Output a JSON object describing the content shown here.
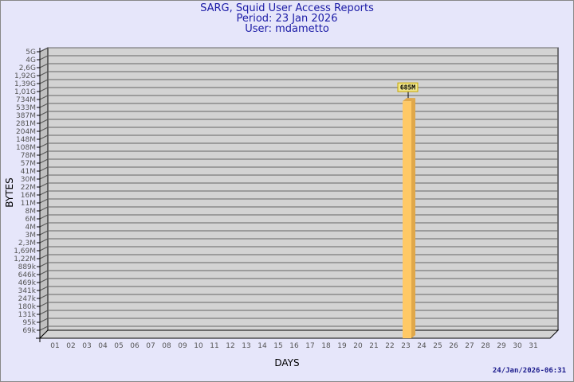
{
  "header": {
    "title": "SARG, Squid User Access Reports",
    "period": "Period: 23 Jan 2026",
    "user": "User: mdametto"
  },
  "footer": {
    "timestamp": "24/Jan/2026-06:31"
  },
  "chart_data": {
    "type": "bar",
    "title": "SARG, Squid User Access Reports",
    "xlabel": "DAYS",
    "ylabel": "BYTES",
    "yscale": "log",
    "grid": true,
    "ytick_labels": [
      "5G",
      "4G",
      "2,6G",
      "1,92G",
      "1,39G",
      "1,01G",
      "734M",
      "533M",
      "387M",
      "281M",
      "204M",
      "148M",
      "108M",
      "78M",
      "57M",
      "41M",
      "30M",
      "22M",
      "16M",
      "11M",
      "8M",
      "6M",
      "4M",
      "3M",
      "2,3M",
      "1,69M",
      "1,22M",
      "889k",
      "646k",
      "469k",
      "341k",
      "247k",
      "180k",
      "131k",
      "95k",
      "69k"
    ],
    "categories": [
      "01",
      "02",
      "03",
      "04",
      "05",
      "06",
      "07",
      "08",
      "09",
      "10",
      "11",
      "12",
      "13",
      "14",
      "15",
      "16",
      "17",
      "18",
      "19",
      "20",
      "21",
      "22",
      "23",
      "24",
      "25",
      "26",
      "27",
      "28",
      "29",
      "30",
      "31"
    ],
    "bars": [
      {
        "day": "23",
        "value": 685000000,
        "label": "685M"
      }
    ],
    "colors": {
      "bar_front": "#ffc966",
      "bar_side": "#e0a84a",
      "wall": "#d3d3d3",
      "label_bg": "#f0e68c"
    }
  }
}
